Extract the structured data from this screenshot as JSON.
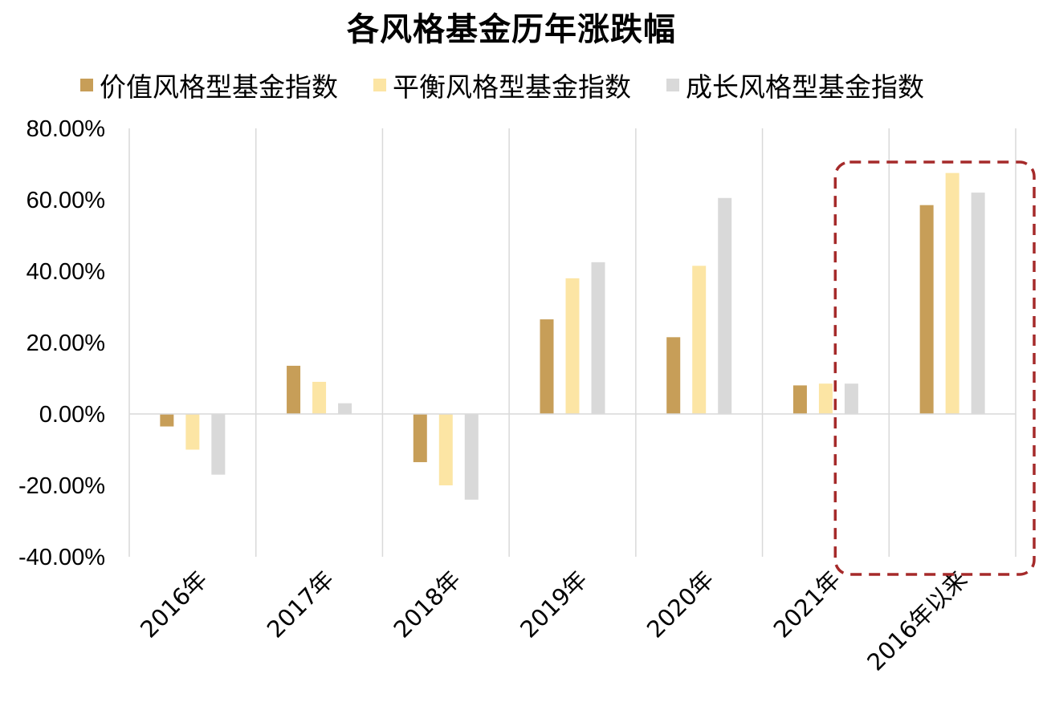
{
  "chart_data": {
    "type": "bar",
    "title": "各风格基金历年涨跌幅",
    "xlabel": "",
    "ylabel": "",
    "categories": [
      "2016年",
      "2017年",
      "2018年",
      "2019年",
      "2020年",
      "2021年",
      "2016年以来"
    ],
    "series": [
      {
        "name": "价值风格型基金指数",
        "color": "#C79E58",
        "values": [
          -3.5,
          13.5,
          -13.5,
          26.5,
          21.5,
          8.0,
          58.5
        ]
      },
      {
        "name": "平衡风格型基金指数",
        "color": "#FCE5A4",
        "values": [
          -10.0,
          9.0,
          -20.0,
          38.0,
          41.5,
          8.5,
          67.5
        ]
      },
      {
        "name": "成长风格型基金指数",
        "color": "#D9D9D9",
        "values": [
          -17.0,
          3.0,
          -24.0,
          42.5,
          60.5,
          8.5,
          62.0
        ]
      }
    ],
    "ylim": [
      -40,
      80
    ],
    "yticks": [
      "80.00%",
      "60.00%",
      "40.00%",
      "20.00%",
      "0.00%",
      "-20.00%",
      "-40.00%"
    ],
    "ytick_values": [
      80,
      60,
      40,
      20,
      0,
      -20,
      -40
    ],
    "grid": "vertical category separators",
    "legend_position": "top",
    "highlight": {
      "category": "2016年以来",
      "style": "dashed rounded box",
      "color": "#A52A2A"
    }
  }
}
